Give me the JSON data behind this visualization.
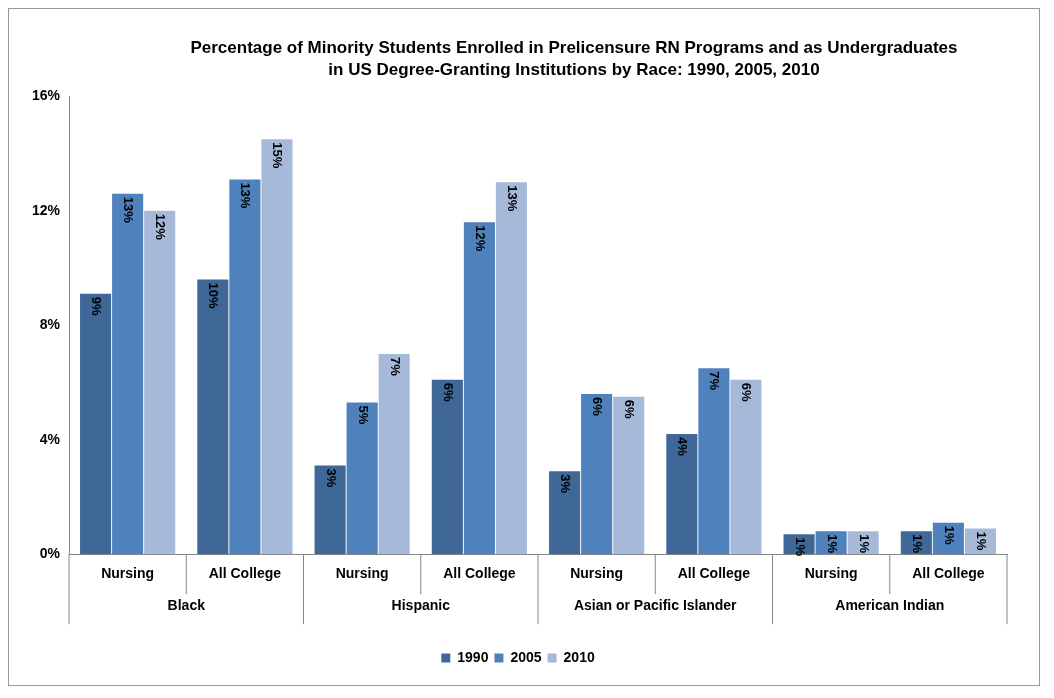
{
  "chart_data": {
    "type": "bar",
    "title": "Percentage of Minority Students Enrolled in Prelicensure RN Programs and as Undergraduates in US Degree-Granting Institutions by Race: 1990, 2005, 2010",
    "categories": [
      "Nursing",
      "All College",
      "Nursing",
      "All College",
      "Nursing",
      "All College",
      "Nursing",
      "All College"
    ],
    "annotations": [
      "Black",
      "Hispanic",
      "Asian or Pacific Islander",
      "American Indian"
    ],
    "series": [
      {
        "name": "1990",
        "color": "#3f6797",
        "values": [
          9.1,
          9.6,
          3.1,
          6.1,
          2.9,
          4.2,
          0.7,
          0.8
        ],
        "value_labels": [
          "9%",
          "10%",
          "3%",
          "6%",
          "3%",
          "4%",
          "1%",
          "1%"
        ]
      },
      {
        "name": "2005",
        "color": "#4f81bd",
        "values": [
          12.6,
          13.1,
          5.3,
          11.6,
          5.6,
          6.5,
          0.8,
          1.1
        ],
        "value_labels": [
          "13%",
          "13%",
          "5%",
          "12%",
          "6%",
          "7%",
          "1%",
          "1%"
        ]
      },
      {
        "name": "2010",
        "color": "#a7b9d9",
        "values": [
          12.0,
          14.5,
          7.0,
          13.0,
          5.5,
          6.1,
          0.8,
          0.9
        ],
        "value_labels": [
          "12%",
          "15%",
          "7%",
          "13%",
          "6%",
          "6%",
          "1%",
          "1%"
        ]
      }
    ],
    "ylim": [
      0,
      16
    ],
    "yticks": [
      {
        "value": 0,
        "label": "0%"
      },
      {
        "value": 4,
        "label": "4%"
      },
      {
        "value": 8,
        "label": "8%"
      },
      {
        "value": 12,
        "label": "12%"
      },
      {
        "value": 16,
        "label": "16%"
      }
    ],
    "grid": false,
    "legend": "bottom"
  }
}
